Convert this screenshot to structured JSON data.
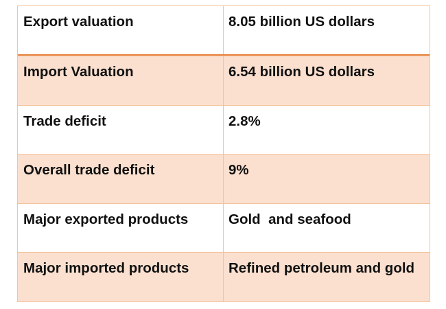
{
  "table": {
    "rows": [
      {
        "label": "Export valuation",
        "value": "8.05 billion US dollars"
      },
      {
        "label": "Import Valuation",
        "value": "6.54 billion US dollars"
      },
      {
        "label": "Trade deficit",
        "value": "2.8%"
      },
      {
        "label": "Overall trade deficit",
        "value": "9%"
      },
      {
        "label": "Major exported products",
        "value": "Gold  and seafood"
      },
      {
        "label": "Major imported products",
        "value": "Refined petroleum and gold"
      }
    ]
  }
}
